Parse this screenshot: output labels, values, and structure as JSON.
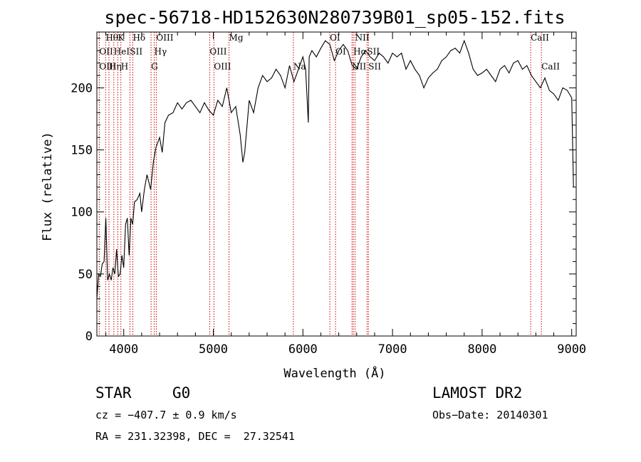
{
  "chart_data": {
    "type": "line",
    "title": "spec-56718-HD152630N280739B01_sp05-152.fits",
    "xlabel": "Wavelength (Å)",
    "ylabel": "Flux (relative)",
    "xlim": [
      3700,
      9050
    ],
    "ylim": [
      0,
      245
    ],
    "xticks": [
      4000,
      5000,
      6000,
      7000,
      8000,
      9000
    ],
    "yticks": [
      0,
      50,
      100,
      150,
      200
    ],
    "grid": false,
    "series": [
      {
        "x": [
          3700,
          3720,
          3740,
          3760,
          3780,
          3800,
          3820,
          3840,
          3860,
          3880,
          3900,
          3920,
          3940,
          3960,
          3980,
          4000,
          4020,
          4040,
          4060,
          4080,
          4100,
          4120,
          4150,
          4180,
          4200,
          4230,
          4260,
          4300,
          4330,
          4360,
          4400,
          4430,
          4460,
          4500,
          4550,
          4600,
          4650,
          4700,
          4750,
          4800,
          4850,
          4900,
          4950,
          5000,
          5050,
          5100,
          5150,
          5200,
          5250,
          5300,
          5330,
          5350,
          5400,
          5450,
          5500,
          5550,
          5600,
          5650,
          5700,
          5750,
          5800,
          5850,
          5900,
          5950,
          6000,
          6030,
          6060,
          6070,
          6100,
          6150,
          6200,
          6250,
          6300,
          6350,
          6400,
          6450,
          6500,
          6550,
          6600,
          6650,
          6700,
          6750,
          6800,
          6850,
          6900,
          6950,
          7000,
          7050,
          7100,
          7150,
          7200,
          7250,
          7300,
          7350,
          7400,
          7450,
          7500,
          7550,
          7600,
          7650,
          7700,
          7750,
          7800,
          7850,
          7900,
          7950,
          8000,
          8050,
          8100,
          8150,
          8200,
          8250,
          8300,
          8350,
          8400,
          8450,
          8500,
          8550,
          8600,
          8650,
          8700,
          8750,
          8800,
          8850,
          8900,
          8950,
          9000,
          9020
        ],
        "y": [
          30,
          50,
          48,
          58,
          60,
          95,
          45,
          50,
          45,
          55,
          50,
          70,
          48,
          50,
          65,
          55,
          90,
          95,
          65,
          95,
          90,
          108,
          110,
          115,
          100,
          118,
          130,
          118,
          140,
          152,
          160,
          148,
          172,
          178,
          180,
          188,
          183,
          188,
          190,
          185,
          180,
          188,
          182,
          178,
          190,
          185,
          200,
          180,
          185,
          162,
          140,
          148,
          190,
          180,
          200,
          210,
          205,
          208,
          215,
          210,
          200,
          218,
          205,
          215,
          225,
          215,
          172,
          225,
          230,
          225,
          232,
          238,
          235,
          222,
          230,
          235,
          230,
          218,
          215,
          225,
          230,
          225,
          222,
          228,
          225,
          220,
          228,
          225,
          228,
          215,
          222,
          215,
          210,
          200,
          208,
          212,
          215,
          222,
          225,
          230,
          232,
          228,
          238,
          228,
          215,
          210,
          212,
          215,
          210,
          205,
          215,
          218,
          212,
          220,
          222,
          215,
          218,
          210,
          205,
          200,
          208,
          198,
          195,
          190,
          200,
          198,
          192,
          120
        ]
      }
    ],
    "line_labels": [
      {
        "text": "Hθ",
        "x": 3798,
        "y": 238
      },
      {
        "text": "K",
        "x": 3934,
        "y": 238
      },
      {
        "text": "Hδ",
        "x": 4101,
        "y": 238
      },
      {
        "text": "OIII",
        "x": 4363,
        "y": 238
      },
      {
        "text": "Mg",
        "x": 5175,
        "y": 238
      },
      {
        "text": "OI",
        "x": 6300,
        "y": 238
      },
      {
        "text": "NII",
        "x": 6583,
        "y": 238
      },
      {
        "text": "CaII",
        "x": 8542,
        "y": 238
      },
      {
        "text": "OII",
        "x": 3727,
        "y": 227
      },
      {
        "text": "HeI",
        "x": 3889,
        "y": 227
      },
      {
        "text": "SII",
        "x": 4069,
        "y": 227
      },
      {
        "text": "Hγ",
        "x": 4340,
        "y": 227
      },
      {
        "text": "OIII",
        "x": 4959,
        "y": 227
      },
      {
        "text": "OI",
        "x": 6364,
        "y": 227
      },
      {
        "text": "Hα",
        "x": 6563,
        "y": 227
      },
      {
        "text": "SII",
        "x": 6716,
        "y": 227
      },
      {
        "text": "OIII",
        "x": 3727,
        "y": 215
      },
      {
        "text": "Hη",
        "x": 3835,
        "y": 215
      },
      {
        "text": "H",
        "x": 3968,
        "y": 215
      },
      {
        "text": "G",
        "x": 4305,
        "y": 215
      },
      {
        "text": "OIII",
        "x": 5007,
        "y": 215
      },
      {
        "text": "Na",
        "x": 5893,
        "y": 215
      },
      {
        "text": "NII",
        "x": 6548,
        "y": 215
      },
      {
        "text": "SII",
        "x": 6731,
        "y": 215
      },
      {
        "text": "CaII",
        "x": 8662,
        "y": 215
      }
    ],
    "marker_lines": [
      3727,
      3798,
      3835,
      3889,
      3934,
      3968,
      4069,
      4101,
      4305,
      4340,
      4363,
      4959,
      5007,
      5175,
      5893,
      6300,
      6364,
      6548,
      6563,
      6583,
      6716,
      6731,
      8542,
      8662
    ]
  },
  "info": {
    "object_type": "STAR",
    "subclass": "G0",
    "survey": "LAMOST DR2",
    "velocity": "cz = −407.7 ± 0.9 km/s",
    "obs_date": "Obs−Date: 20140301",
    "coords": "RA = 231.32398, DEC =  27.32541"
  },
  "colors": {
    "marker_line": "#cc0000",
    "spectrum": "#000000"
  }
}
